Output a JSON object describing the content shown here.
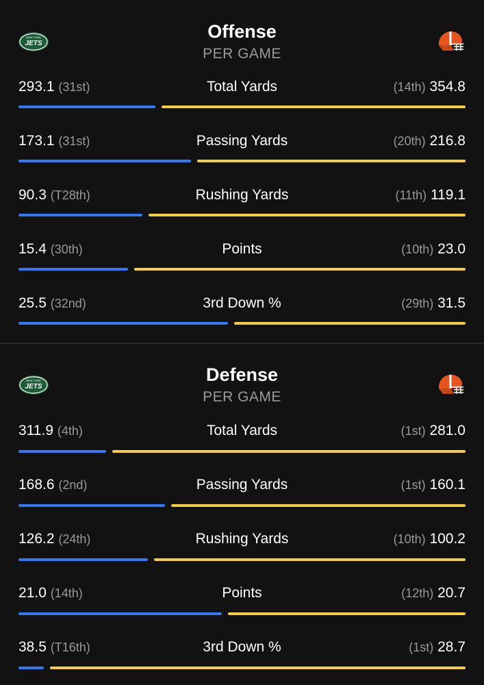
{
  "colors": {
    "background": "#121212",
    "left_bar": "#3478f6",
    "right_bar": "#f5cd3e",
    "rank": "#9a9a9a"
  },
  "icons": {
    "left_team": "jets-logo-icon",
    "right_team": "browns-helmet-icon"
  },
  "jets_logo_text": {
    "top": "NEW YORK",
    "main": "JETS"
  },
  "offense": {
    "title": "Offense",
    "subtitle": "PER GAME",
    "rows": [
      {
        "label": "Total Yards",
        "left": {
          "value": "293.1",
          "rank": "(31st)"
        },
        "right": {
          "value": "354.8",
          "rank": "(14th)"
        }
      },
      {
        "label": "Passing Yards",
        "left": {
          "value": "173.1",
          "rank": "(31st)"
        },
        "right": {
          "value": "216.8",
          "rank": "(20th)"
        }
      },
      {
        "label": "Rushing Yards",
        "left": {
          "value": "90.3",
          "rank": "(T28th)"
        },
        "right": {
          "value": "119.1",
          "rank": "(11th)"
        }
      },
      {
        "label": "Points",
        "left": {
          "value": "15.4",
          "rank": "(30th)"
        },
        "right": {
          "value": "23.0",
          "rank": "(10th)"
        }
      },
      {
        "label": "3rd Down %",
        "left": {
          "value": "25.5",
          "rank": "(32nd)"
        },
        "right": {
          "value": "31.5",
          "rank": "(29th)"
        }
      }
    ]
  },
  "defense": {
    "title": "Defense",
    "subtitle": "PER GAME",
    "rows": [
      {
        "label": "Total Yards",
        "left": {
          "value": "311.9",
          "rank": "(4th)"
        },
        "right": {
          "value": "281.0",
          "rank": "(1st)"
        }
      },
      {
        "label": "Passing Yards",
        "left": {
          "value": "168.6",
          "rank": "(2nd)"
        },
        "right": {
          "value": "160.1",
          "rank": "(1st)"
        }
      },
      {
        "label": "Rushing Yards",
        "left": {
          "value": "126.2",
          "rank": "(24th)"
        },
        "right": {
          "value": "100.2",
          "rank": "(10th)"
        }
      },
      {
        "label": "Points",
        "left": {
          "value": "21.0",
          "rank": "(14th)"
        },
        "right": {
          "value": "20.7",
          "rank": "(12th)"
        }
      },
      {
        "label": "3rd Down %",
        "left": {
          "value": "38.5",
          "rank": "(T16th)"
        },
        "right": {
          "value": "28.7",
          "rank": "(1st)"
        }
      }
    ]
  }
}
